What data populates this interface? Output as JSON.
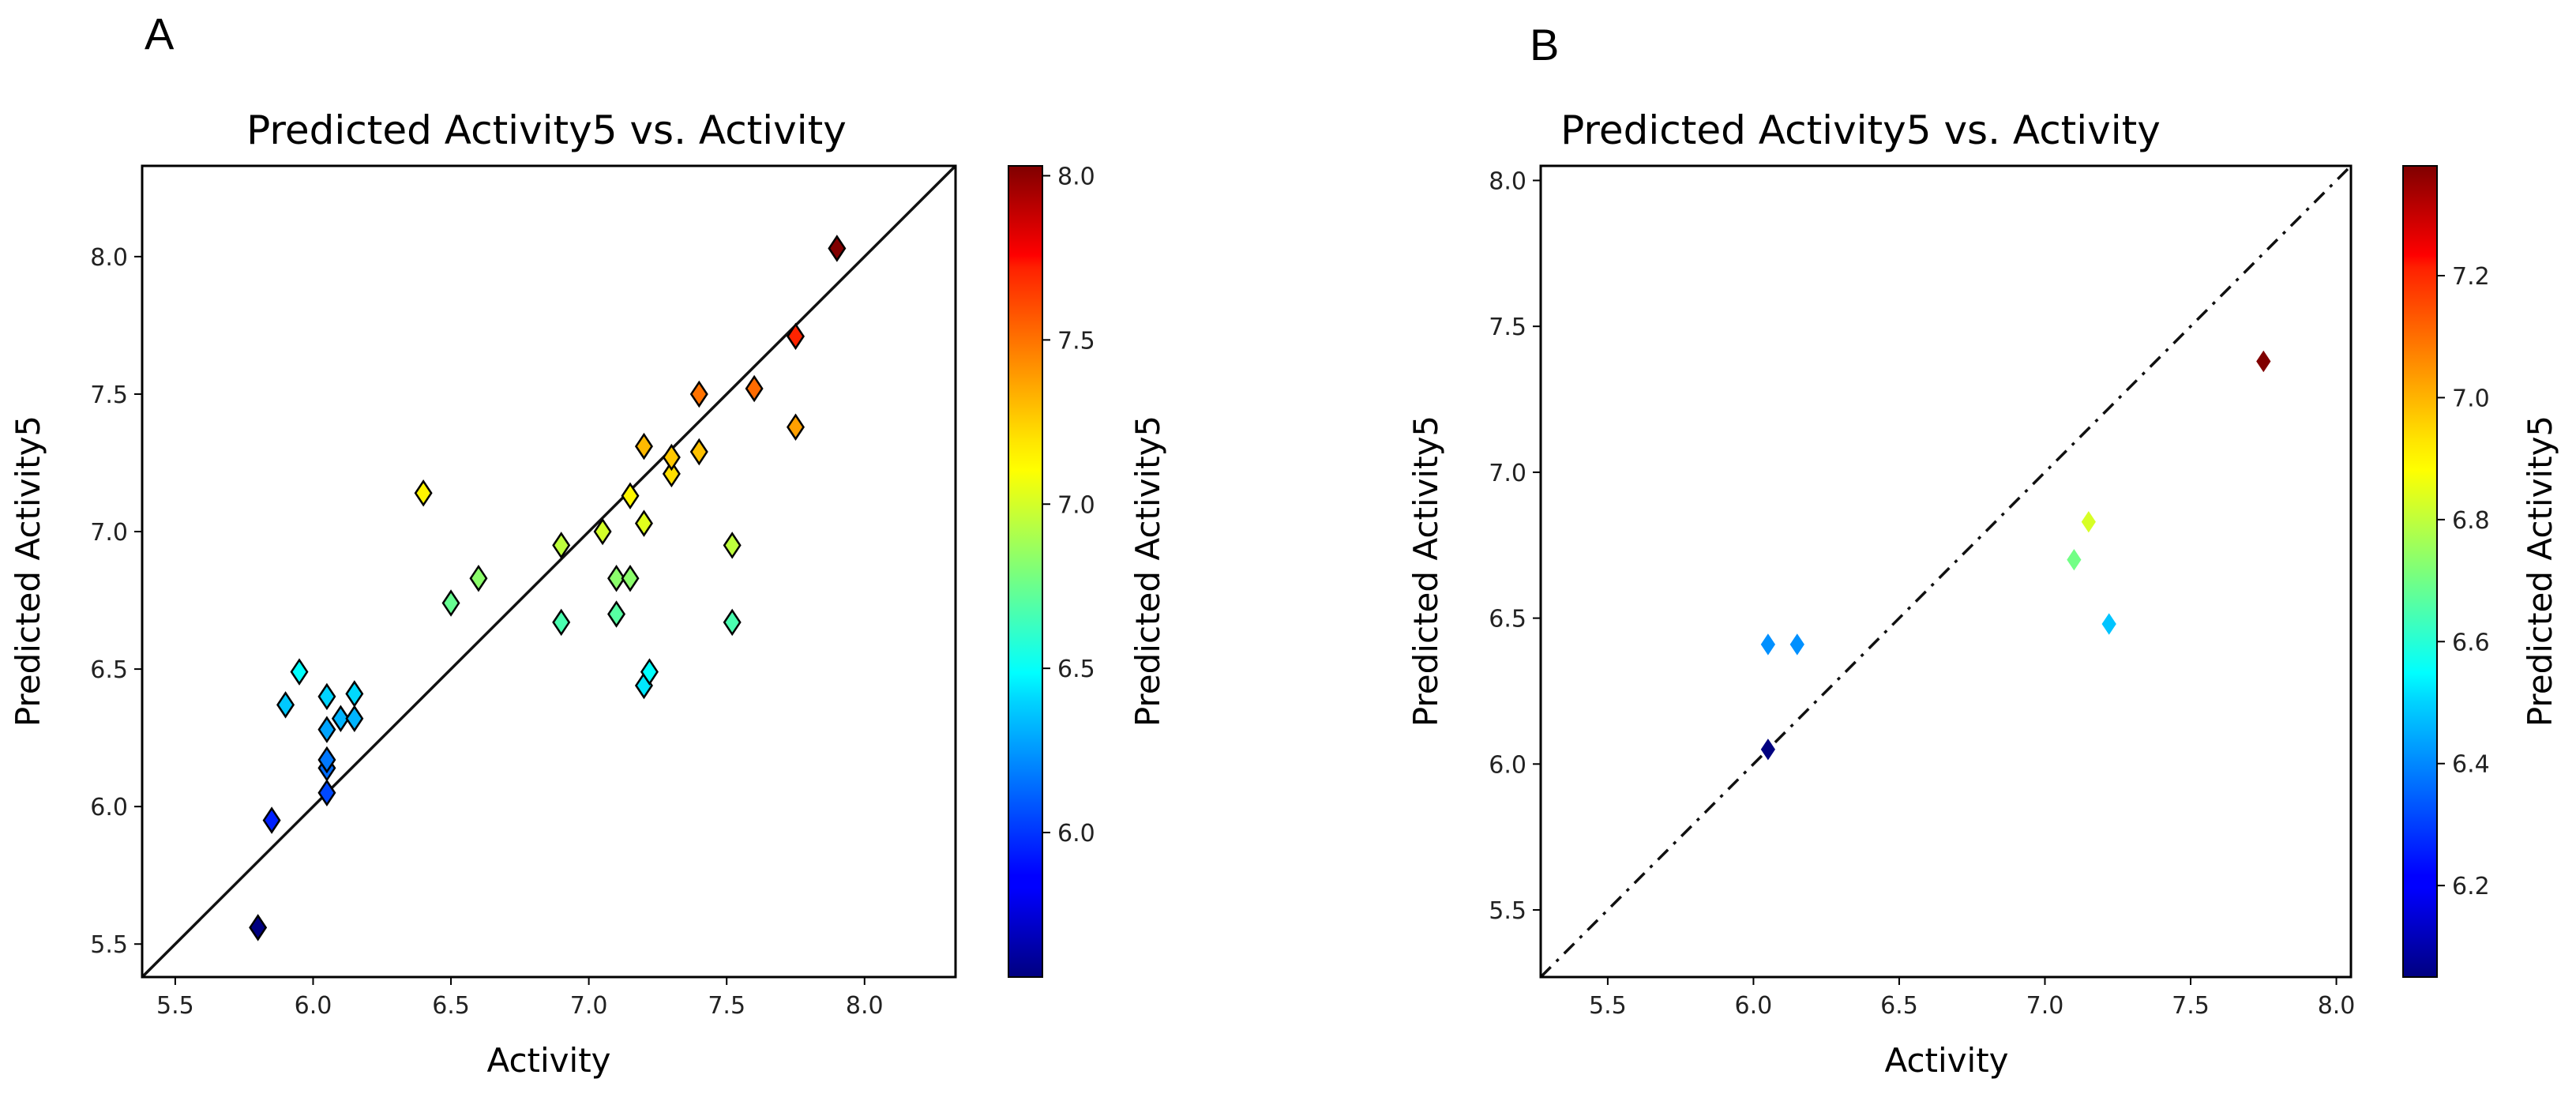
{
  "figure": {
    "panel_a_letter": "A",
    "panel_b_letter": "B"
  },
  "chart_data": [
    {
      "type": "scatter",
      "panel": "A",
      "title": "Predicted Activity5 vs. Activity",
      "xlabel": "Activity",
      "ylabel": "Predicted Activity5",
      "xlim": [
        5.38,
        8.33
      ],
      "ylim": [
        5.38,
        8.33
      ],
      "xticks": [
        "5.5",
        "6.0",
        "6.5",
        "7.0",
        "7.5",
        "8.0"
      ],
      "yticks": [
        "5.5",
        "6.0",
        "6.5",
        "7.0",
        "7.5",
        "8.0"
      ],
      "reference_line": "solid",
      "grid": false,
      "marker": "diamond",
      "colormap": "jet",
      "colorbar": {
        "label": "Predicted Activity5",
        "range": [
          5.56,
          8.03
        ],
        "ticks": [
          "6.0",
          "6.5",
          "7.0",
          "7.5",
          "8.0"
        ]
      },
      "points": [
        {
          "x": 5.8,
          "y": 5.56
        },
        {
          "x": 5.85,
          "y": 5.95
        },
        {
          "x": 5.9,
          "y": 6.37
        },
        {
          "x": 5.95,
          "y": 6.49
        },
        {
          "x": 6.05,
          "y": 6.05
        },
        {
          "x": 6.05,
          "y": 6.14
        },
        {
          "x": 6.05,
          "y": 6.17
        },
        {
          "x": 6.05,
          "y": 6.28
        },
        {
          "x": 6.05,
          "y": 6.4
        },
        {
          "x": 6.1,
          "y": 6.32
        },
        {
          "x": 6.15,
          "y": 6.32
        },
        {
          "x": 6.15,
          "y": 6.41
        },
        {
          "x": 6.4,
          "y": 7.14
        },
        {
          "x": 6.5,
          "y": 6.74
        },
        {
          "x": 6.6,
          "y": 6.83
        },
        {
          "x": 6.9,
          "y": 6.67
        },
        {
          "x": 6.9,
          "y": 6.95
        },
        {
          "x": 7.05,
          "y": 7.0
        },
        {
          "x": 7.1,
          "y": 6.7
        },
        {
          "x": 7.1,
          "y": 6.83
        },
        {
          "x": 7.15,
          "y": 6.83
        },
        {
          "x": 7.15,
          "y": 7.13
        },
        {
          "x": 7.2,
          "y": 6.44
        },
        {
          "x": 7.22,
          "y": 6.49
        },
        {
          "x": 7.2,
          "y": 7.03
        },
        {
          "x": 7.2,
          "y": 7.31
        },
        {
          "x": 7.3,
          "y": 7.21
        },
        {
          "x": 7.3,
          "y": 7.27
        },
        {
          "x": 7.4,
          "y": 7.29
        },
        {
          "x": 7.4,
          "y": 7.5
        },
        {
          "x": 7.52,
          "y": 6.67
        },
        {
          "x": 7.52,
          "y": 6.95
        },
        {
          "x": 7.6,
          "y": 7.52
        },
        {
          "x": 7.75,
          "y": 7.38
        },
        {
          "x": 7.75,
          "y": 7.71
        },
        {
          "x": 7.9,
          "y": 8.03
        }
      ]
    },
    {
      "type": "scatter",
      "panel": "B",
      "title": "Predicted Activity5 vs. Activity",
      "xlabel": "Activity",
      "ylabel": "Predicted Activity5",
      "xlim": [
        5.27,
        8.05
      ],
      "ylim": [
        5.27,
        8.05
      ],
      "xticks": [
        "5.5",
        "6.0",
        "6.5",
        "7.0",
        "7.5",
        "8.0"
      ],
      "yticks": [
        "5.5",
        "6.0",
        "6.5",
        "7.0",
        "7.5",
        "8.0"
      ],
      "reference_line": "dash-dot",
      "grid": false,
      "marker": "diamond",
      "colormap": "jet",
      "colorbar": {
        "label": "Predicted Activity5",
        "range": [
          6.05,
          7.38
        ],
        "ticks": [
          "6.2",
          "6.4",
          "6.6",
          "6.8",
          "7.0",
          "7.2"
        ]
      },
      "points": [
        {
          "x": 6.05,
          "y": 6.05
        },
        {
          "x": 6.05,
          "y": 6.41
        },
        {
          "x": 6.15,
          "y": 6.41
        },
        {
          "x": 7.1,
          "y": 6.7
        },
        {
          "x": 7.15,
          "y": 6.83
        },
        {
          "x": 7.22,
          "y": 6.48
        },
        {
          "x": 7.75,
          "y": 7.38
        }
      ]
    }
  ]
}
